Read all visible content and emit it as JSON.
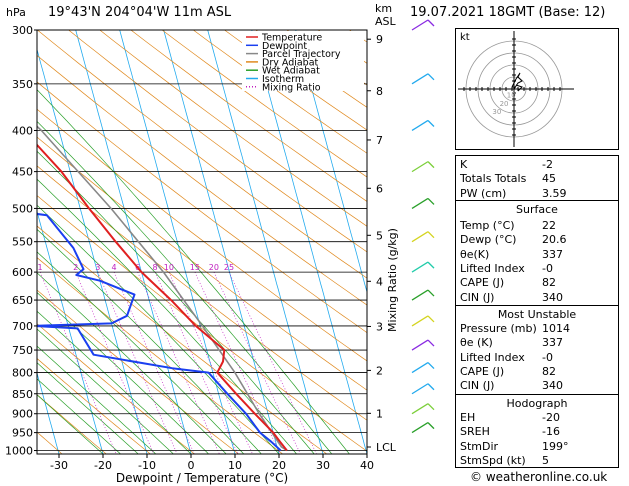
{
  "header": {
    "hpa_label": "hPa",
    "location": "19°43'N 204°04'W 11m ASL",
    "km_label": "km",
    "asl_label": "ASL",
    "datetime": "19.07.2021 18GMT (Base: 12)"
  },
  "footer": {
    "credit": "© weatheronline.co.uk"
  },
  "chart_data": {
    "type": "skew-t",
    "xlabel": "Dewpoint / Temperature (°C)",
    "ylabel_right": "Mixing Ratio (g/kg)",
    "xlim": [
      -35,
      40
    ],
    "x_ticks": [
      -30,
      -20,
      -10,
      0,
      10,
      20,
      30,
      40
    ],
    "pressure_levels": [
      300,
      350,
      400,
      450,
      500,
      550,
      600,
      650,
      700,
      750,
      800,
      850,
      900,
      950,
      1000
    ],
    "km_ticks": [
      {
        "label": "9",
        "p": 308
      },
      {
        "label": "8",
        "p": 357
      },
      {
        "label": "7",
        "p": 411
      },
      {
        "label": "6",
        "p": 472
      },
      {
        "label": "5",
        "p": 540
      },
      {
        "label": "4",
        "p": 616
      },
      {
        "label": "3",
        "p": 701
      },
      {
        "label": "2",
        "p": 795
      },
      {
        "label": "1",
        "p": 899
      },
      {
        "label": "LCL",
        "p": 990
      }
    ],
    "mixing_ratio_labels": [
      "1",
      "2",
      "3",
      "4",
      "6",
      "8",
      "10",
      "15",
      "20",
      "25"
    ],
    "legend": [
      {
        "label": "Temperature",
        "color": "#e02020",
        "style": "solid"
      },
      {
        "label": "Dewpoint",
        "color": "#1a3ff0",
        "style": "solid"
      },
      {
        "label": "Parcel Trajectory",
        "color": "#888888",
        "style": "solid"
      },
      {
        "label": "Dry Adiabat",
        "color": "#e08a20",
        "style": "solid"
      },
      {
        "label": "Wet Adiabat",
        "color": "#2aa02a",
        "style": "solid"
      },
      {
        "label": "Isotherm",
        "color": "#22aaee",
        "style": "solid"
      },
      {
        "label": "Mixing Ratio",
        "color": "#c020c0",
        "style": "dotted"
      }
    ],
    "temperature": [
      {
        "p": 1000,
        "t": 22
      },
      {
        "p": 975,
        "t": 21
      },
      {
        "p": 950,
        "t": 20
      },
      {
        "p": 900,
        "t": 17
      },
      {
        "p": 850,
        "t": 14
      },
      {
        "p": 800,
        "t": 11
      },
      {
        "p": 775,
        "t": 13
      },
      {
        "p": 750,
        "t": 14
      },
      {
        "p": 700,
        "t": 9
      },
      {
        "p": 650,
        "t": 5
      },
      {
        "p": 600,
        "t": 0
      },
      {
        "p": 550,
        "t": -4
      },
      {
        "p": 500,
        "t": -8
      },
      {
        "p": 450,
        "t": -12
      },
      {
        "p": 400,
        "t": -18
      },
      {
        "p": 350,
        "t": -25
      },
      {
        "p": 300,
        "t": -32
      }
    ],
    "dewpoint": [
      {
        "p": 1000,
        "t": 20.6
      },
      {
        "p": 975,
        "t": 19
      },
      {
        "p": 950,
        "t": 17
      },
      {
        "p": 900,
        "t": 15
      },
      {
        "p": 850,
        "t": 12
      },
      {
        "p": 800,
        "t": 9
      },
      {
        "p": 790,
        "t": 1
      },
      {
        "p": 760,
        "t": -16
      },
      {
        "p": 705,
        "t": -18
      },
      {
        "p": 700,
        "t": -28
      },
      {
        "p": 695,
        "t": -10
      },
      {
        "p": 680,
        "t": -6
      },
      {
        "p": 640,
        "t": -3
      },
      {
        "p": 615,
        "t": -10
      },
      {
        "p": 605,
        "t": -15
      },
      {
        "p": 595,
        "t": -13
      },
      {
        "p": 560,
        "t": -14
      },
      {
        "p": 510,
        "t": -18
      },
      {
        "p": 500,
        "t": -29
      },
      {
        "p": 490,
        "t": -32
      },
      {
        "p": 470,
        "t": -27
      },
      {
        "p": 450,
        "t": -24
      },
      {
        "p": 430,
        "t": -34
      },
      {
        "p": 400,
        "t": -38
      },
      {
        "p": 350,
        "t": -45
      },
      {
        "p": 300,
        "t": -43
      }
    ],
    "parcel": [
      {
        "p": 1000,
        "t": 22
      },
      {
        "p": 990,
        "t": 21
      },
      {
        "p": 900,
        "t": 18
      },
      {
        "p": 800,
        "t": 15
      },
      {
        "p": 700,
        "t": 10.5
      },
      {
        "p": 600,
        "t": 5
      },
      {
        "p": 500,
        "t": -3
      },
      {
        "p": 400,
        "t": -14
      },
      {
        "p": 300,
        "t": -32
      }
    ],
    "wind_colors": [
      "#8a2be2",
      "#22aaee",
      "#22aaee",
      "#7ccf3a",
      "#2aa02a",
      "#d4d420",
      "#22ccaa",
      "#2aa02a",
      "#d4d420"
    ]
  },
  "hodograph": {
    "unit_label": "kt",
    "ring_labels": [
      "10",
      "20",
      "30"
    ]
  },
  "indices": {
    "rows": [
      {
        "label": "K",
        "value": "-2"
      },
      {
        "label": "Totals Totals",
        "value": "45"
      },
      {
        "label": "PW (cm)",
        "value": "3.59"
      }
    ]
  },
  "surface": {
    "title": "Surface",
    "rows": [
      {
        "label": "Temp (°C)",
        "value": "22"
      },
      {
        "label": "Dewp (°C)",
        "value": "20.6"
      },
      {
        "label": "θe(K)",
        "value": "337"
      },
      {
        "label": "Lifted Index",
        "value": "-0"
      },
      {
        "label": "CAPE (J)",
        "value": "82"
      },
      {
        "label": "CIN (J)",
        "value": "340"
      }
    ]
  },
  "most_unstable": {
    "title": "Most Unstable",
    "rows": [
      {
        "label": "Pressure (mb)",
        "value": "1014"
      },
      {
        "label": "θe (K)",
        "value": "337"
      },
      {
        "label": "Lifted Index",
        "value": "-0"
      },
      {
        "label": "CAPE (J)",
        "value": "82"
      },
      {
        "label": "CIN (J)",
        "value": "340"
      }
    ]
  },
  "hodograph_stats": {
    "title": "Hodograph",
    "rows": [
      {
        "label": "EH",
        "value": "-20"
      },
      {
        "label": "SREH",
        "value": "-16"
      },
      {
        "label": "StmDir",
        "value": "199°"
      },
      {
        "label": "StmSpd (kt)",
        "value": "5"
      }
    ]
  }
}
